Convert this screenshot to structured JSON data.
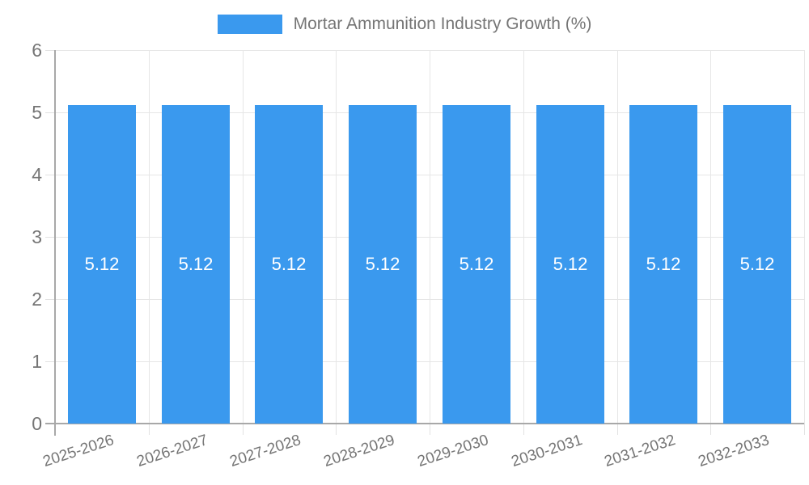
{
  "page": {
    "background": "#ffffff"
  },
  "legend": {
    "label": "Mortar Ammunition Industry Growth (%)"
  },
  "chart_data": {
    "type": "bar",
    "title": "Mortar Ammunition Industry Growth (%)",
    "categories": [
      "2025-2026",
      "2026-2027",
      "2027-2028",
      "2028-2029",
      "2029-2030",
      "2030-2031",
      "2031-2032",
      "2032-2033"
    ],
    "values": [
      5.12,
      5.12,
      5.12,
      5.12,
      5.12,
      5.12,
      5.12,
      5.12
    ],
    "value_labels": [
      "5.12",
      "5.12",
      "5.12",
      "5.12",
      "5.12",
      "5.12",
      "5.12",
      "5.12"
    ],
    "xlabel": "",
    "ylabel": "",
    "ylim": [
      0,
      6
    ],
    "yticks": [
      0,
      1,
      2,
      3,
      4,
      5,
      6
    ],
    "grid": true,
    "legend_position": "top-center",
    "colors": {
      "bar": "#3a99ee",
      "axis": "#a8a8a8",
      "grid": "#e6e6e6",
      "tick": "#e2e2e2",
      "text": "#757575",
      "value_label": "#ffffff"
    }
  }
}
